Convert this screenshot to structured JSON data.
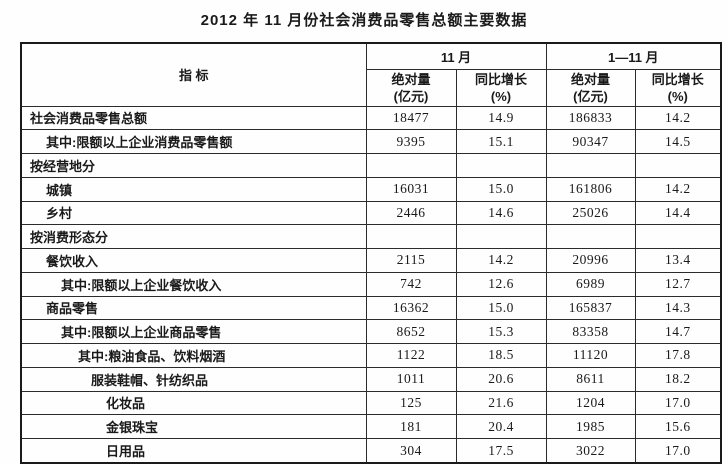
{
  "page_title": "2012 年 11 月份社会消费品零售总额主要数据",
  "chart_data": {
    "type": "table",
    "title": "2012 年 11 月份社会消费品零售总额主要数据",
    "header": {
      "indicator_label": "指 标",
      "period_groups": [
        "11 月",
        "1—11 月"
      ],
      "sub_columns": {
        "absolute_line1": "绝对量",
        "absolute_line2": "(亿元)",
        "growth_line1": "同比增长",
        "growth_line2": "(%)"
      }
    },
    "units": {
      "absolute": "亿元",
      "growth": "%"
    },
    "rows": [
      {
        "label": "社会消费品零售总额",
        "indent": 0,
        "nov_absolute": "18477",
        "nov_growth": "14.9",
        "jan_nov_absolute": "186833",
        "jan_nov_growth": "14.2"
      },
      {
        "label": "其中:限额以上企业消费品零售额",
        "indent": 1,
        "nov_absolute": "9395",
        "nov_growth": "15.1",
        "jan_nov_absolute": "90347",
        "jan_nov_growth": "14.5"
      },
      {
        "label": "按经营地分",
        "indent": 0,
        "nov_absolute": "",
        "nov_growth": "",
        "jan_nov_absolute": "",
        "jan_nov_growth": ""
      },
      {
        "label": "城镇",
        "indent": 1,
        "nov_absolute": "16031",
        "nov_growth": "15.0",
        "jan_nov_absolute": "161806",
        "jan_nov_growth": "14.2"
      },
      {
        "label": "乡村",
        "indent": 1,
        "nov_absolute": "2446",
        "nov_growth": "14.6",
        "jan_nov_absolute": "25026",
        "jan_nov_growth": "14.4"
      },
      {
        "label": "按消费形态分",
        "indent": 0,
        "nov_absolute": "",
        "nov_growth": "",
        "jan_nov_absolute": "",
        "jan_nov_growth": ""
      },
      {
        "label": "餐饮收入",
        "indent": 1,
        "nov_absolute": "2115",
        "nov_growth": "14.2",
        "jan_nov_absolute": "20996",
        "jan_nov_growth": "13.4"
      },
      {
        "label": "其中:限额以上企业餐饮收入",
        "indent": 2,
        "nov_absolute": "742",
        "nov_growth": "12.6",
        "jan_nov_absolute": "6989",
        "jan_nov_growth": "12.7"
      },
      {
        "label": "商品零售",
        "indent": 1,
        "nov_absolute": "16362",
        "nov_growth": "15.0",
        "jan_nov_absolute": "165837",
        "jan_nov_growth": "14.3"
      },
      {
        "label": "其中:限额以上企业商品零售",
        "indent": 2,
        "nov_absolute": "8652",
        "nov_growth": "15.3",
        "jan_nov_absolute": "83358",
        "jan_nov_growth": "14.7"
      },
      {
        "label": "其中:粮油食品、饮料烟酒",
        "indent": 3,
        "nov_absolute": "1122",
        "nov_growth": "18.5",
        "jan_nov_absolute": "11120",
        "jan_nov_growth": "17.8"
      },
      {
        "label": "服装鞋帽、针纺织品",
        "indent": 4,
        "nov_absolute": "1011",
        "nov_growth": "20.6",
        "jan_nov_absolute": "8611",
        "jan_nov_growth": "18.2"
      },
      {
        "label": "化妆品",
        "indent": 5,
        "nov_absolute": "125",
        "nov_growth": "21.6",
        "jan_nov_absolute": "1204",
        "jan_nov_growth": "17.0"
      },
      {
        "label": "金银珠宝",
        "indent": 5,
        "nov_absolute": "181",
        "nov_growth": "20.4",
        "jan_nov_absolute": "1985",
        "jan_nov_growth": "15.6"
      },
      {
        "label": "日用品",
        "indent": 5,
        "nov_absolute": "304",
        "nov_growth": "17.5",
        "jan_nov_absolute": "3022",
        "jan_nov_growth": "17.0"
      }
    ],
    "colors": {
      "text": "#1a1a1a",
      "border": "#2b2b2b",
      "background": "#fefefe"
    }
  }
}
